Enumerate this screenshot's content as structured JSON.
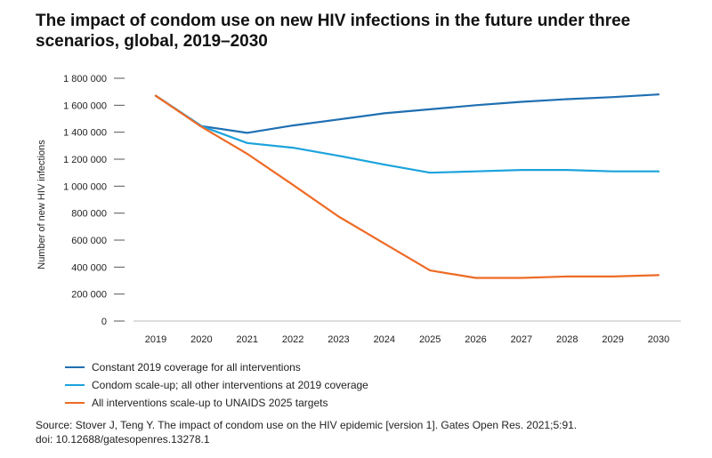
{
  "title": "The impact of condom use on new HIV infections in the future under three scenarios, global, 2019–2030",
  "chart_data": {
    "type": "line",
    "title": "The impact of condom use on new HIV infections in the future under three scenarios, global, 2019–2030",
    "xlabel": "",
    "ylabel": "Number of new HIV infections",
    "x": [
      "2019",
      "2020",
      "2021",
      "2022",
      "2023",
      "2024",
      "2025",
      "2026",
      "2027",
      "2028",
      "2029",
      "2030"
    ],
    "ylim": [
      0,
      1800000
    ],
    "yticks": [
      0,
      200000,
      400000,
      600000,
      800000,
      1000000,
      1200000,
      1400000,
      1600000,
      1800000
    ],
    "ytick_labels": [
      "0",
      "200 000",
      "400 000",
      "600 000",
      "800 000",
      "1 000 000",
      "1 200 000",
      "1 400 000",
      "1 600 000",
      "1 800 000"
    ],
    "grid": false,
    "legend_position": "bottom-left",
    "series": [
      {
        "name": "Constant 2019 coverage for all interventions",
        "color": "#1f6fb2",
        "values": [
          1670000,
          1445000,
          1395000,
          1450000,
          1495000,
          1540000,
          1570000,
          1600000,
          1625000,
          1645000,
          1660000,
          1680000
        ]
      },
      {
        "name": "Condom scale-up; all other interventions at 2019 coverage",
        "color": "#1ba3dc",
        "values": [
          1670000,
          1445000,
          1320000,
          1285000,
          1225000,
          1160000,
          1100000,
          1110000,
          1120000,
          1120000,
          1110000,
          1110000
        ]
      },
      {
        "name": "All interventions scale-up to UNAIDS 2025 targets",
        "color": "#ee6a24",
        "values": [
          1670000,
          1440000,
          1240000,
          1010000,
          775000,
          575000,
          375000,
          320000,
          320000,
          330000,
          330000,
          340000
        ]
      }
    ]
  },
  "source": {
    "line1": "Source: Stover J, Teng Y. The impact of condom use on the HIV epidemic [version 1]. Gates Open Res. 2021;5:91.",
    "line2": "doi: 10.12688/gatesopenres.13278.1"
  }
}
